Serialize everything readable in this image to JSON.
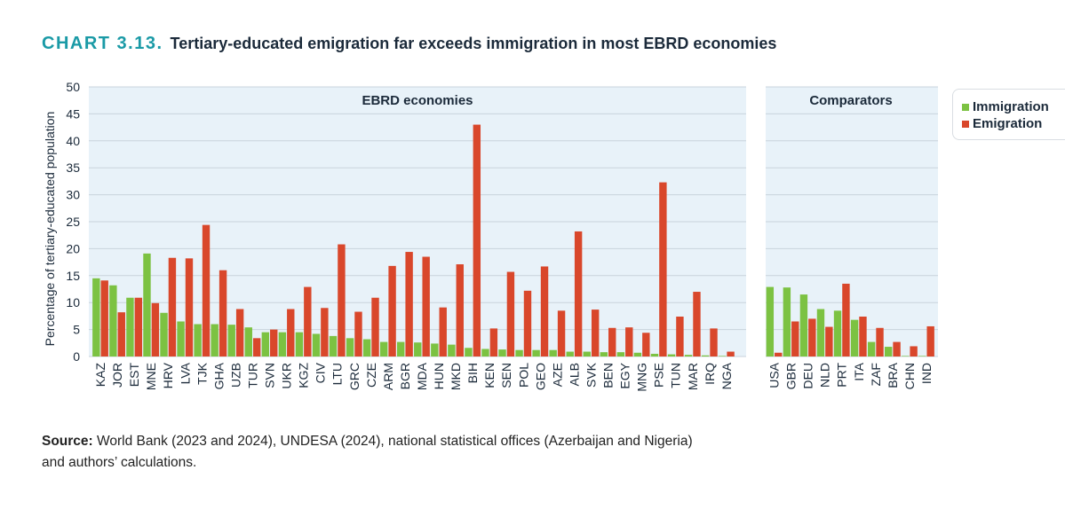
{
  "heading": {
    "chart_number": "CHART 3.13.",
    "title": "Tertiary-educated emigration far exceeds immigration in most EBRD economies"
  },
  "source": {
    "label": "Source:",
    "text": "World Bank (2023 and 2024), UNDESA (2024), national statistical offices (Azerbaijan and Nigeria) and authors’ calculations."
  },
  "colors": {
    "immigration": "#7cc242",
    "emigration": "#d9472b",
    "panel": "#e8f2f9",
    "grid": "#c9d3dc",
    "axis_text": "#1b2a3a"
  },
  "chart_data": {
    "type": "bar",
    "title": "Tertiary-educated emigration far exceeds immigration in most EBRD economies",
    "ylabel": "Percentage of tertiary-educated population",
    "xlabel": "",
    "ylim": [
      0,
      50
    ],
    "yticks": [
      0,
      5,
      10,
      15,
      20,
      25,
      30,
      35,
      40,
      45,
      50
    ],
    "grid": true,
    "legend_position": "top-right",
    "series": [
      {
        "name": "Immigration",
        "key": "immigration"
      },
      {
        "name": "Emigration",
        "key": "emigration"
      }
    ],
    "groups": [
      {
        "name": "EBRD economies",
        "categories": [
          "KAZ",
          "JOR",
          "EST",
          "MNE",
          "HRV",
          "LVA",
          "TJK",
          "GHA",
          "UZB",
          "TUR",
          "SVN",
          "UKR",
          "KGZ",
          "CIV",
          "LTU",
          "GRC",
          "CZE",
          "ARM",
          "BGR",
          "MDA",
          "HUN",
          "MKD",
          "BIH",
          "KEN",
          "SEN",
          "POL",
          "GEO",
          "AZE",
          "ALB",
          "SVK",
          "BEN",
          "EGY",
          "MNG",
          "PSE",
          "TUN",
          "MAR",
          "IRQ",
          "NGA"
        ],
        "immigration": [
          14.5,
          13.2,
          10.9,
          19.1,
          8.1,
          6.5,
          6.0,
          6.0,
          5.9,
          5.4,
          4.5,
          4.5,
          4.5,
          4.2,
          3.8,
          3.4,
          3.2,
          2.7,
          2.7,
          2.6,
          2.4,
          2.2,
          1.6,
          1.4,
          1.3,
          1.2,
          1.2,
          1.2,
          0.9,
          0.9,
          0.8,
          0.8,
          0.7,
          0.5,
          0.4,
          0.3,
          0.2,
          0.1
        ],
        "emigration": [
          14.1,
          8.2,
          10.9,
          9.9,
          18.3,
          18.2,
          24.4,
          16.0,
          8.8,
          3.4,
          5.0,
          8.8,
          12.9,
          9.0,
          20.8,
          8.3,
          10.9,
          16.8,
          19.4,
          18.5,
          9.1,
          17.1,
          43.0,
          5.2,
          15.7,
          12.2,
          16.7,
          8.5,
          23.2,
          8.7,
          5.3,
          5.4,
          4.4,
          32.3,
          7.4,
          12.0,
          5.2,
          0.9
        ]
      },
      {
        "name": "Comparators",
        "categories": [
          "USA",
          "GBR",
          "DEU",
          "NLD",
          "PRT",
          "ITA",
          "ZAF",
          "BRA",
          "CHN",
          "IND"
        ],
        "immigration": [
          12.9,
          12.8,
          11.5,
          8.8,
          8.5,
          6.8,
          2.7,
          1.8,
          0.1,
          0.1
        ],
        "emigration": [
          0.7,
          6.5,
          7.0,
          5.5,
          13.5,
          7.4,
          5.3,
          2.7,
          1.9,
          5.6
        ]
      }
    ]
  }
}
